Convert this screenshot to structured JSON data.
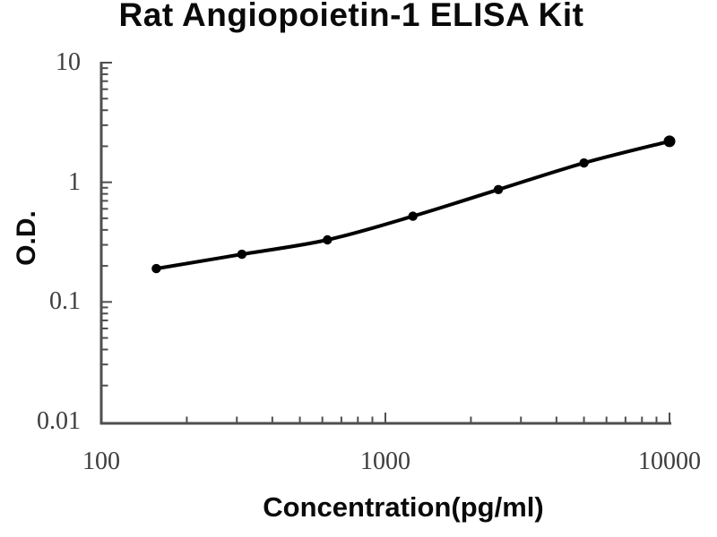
{
  "chart_data": {
    "type": "line",
    "title": "Rat Angiopoietin-1 ELISA Kit",
    "xlabel": "Concentration(pg/ml)",
    "ylabel": "O.D.",
    "x_scale": "log",
    "y_scale": "log",
    "xlim": [
      100,
      10000
    ],
    "ylim": [
      0.01,
      10
    ],
    "x_tick_values": [
      100,
      1000,
      10000
    ],
    "x_tick_labels": [
      "100",
      "1000",
      "10000"
    ],
    "y_tick_values": [
      10,
      1,
      0.1,
      0.01
    ],
    "y_tick_labels": [
      "10",
      "1",
      "0.1",
      "0.01"
    ],
    "minor_ticks": "log-decades-2-to-9",
    "grid": false,
    "legend": false,
    "series": [
      {
        "name": "standard curve",
        "marker": "circle",
        "color": "#000000",
        "x": [
          156.25,
          312.5,
          625,
          1250,
          2500,
          5000,
          10000
        ],
        "y": [
          0.19,
          0.25,
          0.33,
          0.52,
          0.87,
          1.45,
          2.2
        ]
      }
    ]
  },
  "style": {
    "background": "#ffffff",
    "axis_color": "#4f4f4f",
    "tick_label_color": "#3d3d3d",
    "title_color": "#0a0a0a",
    "curve_color": "#000000"
  }
}
